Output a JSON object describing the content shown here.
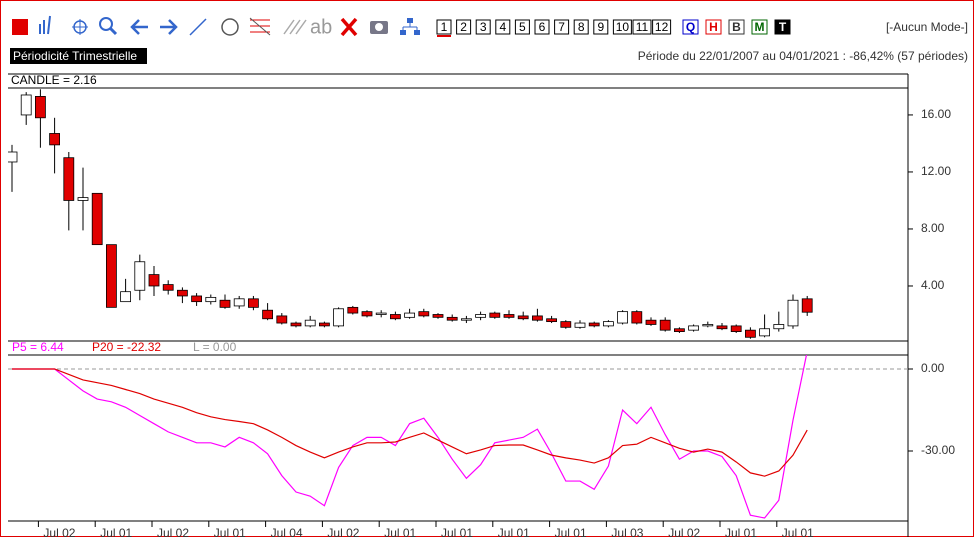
{
  "toolbar": {
    "ab": "ab",
    "numbers": [
      "1",
      "2",
      "3",
      "4",
      "5",
      "6",
      "7",
      "8",
      "9",
      "10",
      "11",
      "12"
    ],
    "letters": [
      "Q",
      "H",
      "B",
      "M",
      "T"
    ],
    "mode": "[-Aucun Mode-]"
  },
  "header": {
    "periodicity": "Périodicité Trimestrielle",
    "period": "Période du 22/01/2007 au 04/01/2021 : -86,42% (57 périodes)"
  },
  "chart_data": [
    {
      "type": "candlestick",
      "legend_label": "CANDLE = 2.16",
      "categories": [
        null,
        null,
        "Jul 02",
        null,
        null,
        null,
        "Jul 01",
        null,
        null,
        null,
        "Jul 02",
        null,
        null,
        null,
        "Jul 01",
        null,
        null,
        null,
        "Jul 04",
        null,
        null,
        null,
        "Jul 02",
        null,
        null,
        null,
        "Jul 01",
        null,
        null,
        null,
        "Jul 01",
        null,
        null,
        null,
        "Jul 01",
        null,
        null,
        null,
        "Jul 01",
        null,
        null,
        null,
        "Jul 03",
        null,
        null,
        null,
        "Jul 02",
        null,
        null,
        null,
        "Jul 01",
        null,
        null,
        null,
        "Jul 01",
        null,
        null
      ],
      "open": [
        12.7,
        16.0,
        17.3,
        14.7,
        13.0,
        10.0,
        10.5,
        6.9,
        2.9,
        3.7,
        4.8,
        4.1,
        3.7,
        3.3,
        2.9,
        3.0,
        2.6,
        3.1,
        2.3,
        1.9,
        1.4,
        1.2,
        1.4,
        1.2,
        2.5,
        2.2,
        2.0,
        2.0,
        1.8,
        2.2,
        2.0,
        1.8,
        1.6,
        1.8,
        2.1,
        2.0,
        1.9,
        1.9,
        1.7,
        1.5,
        1.1,
        1.4,
        1.2,
        1.4,
        2.2,
        1.6,
        1.6,
        1.0,
        0.9,
        1.2,
        1.2,
        1.2,
        0.9,
        0.5,
        1.0,
        1.2,
        3.1
      ],
      "high": [
        13.9,
        17.6,
        17.8,
        15.8,
        13.4,
        12.3,
        10.5,
        6.9,
        4.5,
        6.2,
        5.4,
        4.4,
        3.9,
        3.5,
        3.4,
        3.4,
        3.3,
        3.3,
        2.8,
        2.1,
        1.5,
        1.9,
        1.5,
        2.5,
        2.6,
        2.3,
        2.3,
        2.2,
        2.4,
        2.4,
        2.1,
        2.0,
        1.9,
        2.2,
        2.2,
        2.3,
        2.2,
        2.4,
        1.9,
        1.6,
        1.6,
        1.5,
        1.6,
        2.3,
        2.3,
        1.8,
        1.8,
        1.1,
        1.3,
        1.5,
        1.4,
        1.3,
        1.1,
        2.0,
        2.2,
        3.4,
        3.3
      ],
      "low": [
        10.6,
        15.3,
        13.7,
        11.9,
        7.9,
        7.9,
        6.9,
        2.5,
        2.9,
        3.0,
        3.3,
        3.4,
        2.8,
        2.6,
        2.7,
        2.4,
        2.4,
        2.3,
        1.6,
        1.3,
        1.1,
        1.1,
        1.1,
        1.1,
        2.0,
        1.8,
        1.8,
        1.6,
        1.7,
        1.8,
        1.7,
        1.5,
        1.4,
        1.6,
        1.7,
        1.7,
        1.6,
        1.5,
        1.4,
        1.0,
        1.0,
        1.1,
        1.1,
        1.3,
        1.3,
        1.2,
        0.8,
        0.7,
        0.8,
        1.1,
        0.9,
        0.7,
        0.3,
        0.4,
        0.8,
        1.0,
        1.9
      ],
      "close": [
        13.4,
        17.4,
        15.8,
        13.9,
        10.0,
        10.2,
        6.9,
        2.5,
        3.6,
        5.7,
        4.0,
        3.7,
        3.3,
        2.9,
        3.2,
        2.5,
        3.1,
        2.5,
        1.7,
        1.4,
        1.2,
        1.6,
        1.2,
        2.4,
        2.1,
        1.9,
        2.1,
        1.7,
        2.1,
        1.9,
        1.8,
        1.6,
        1.7,
        2.0,
        1.8,
        1.8,
        1.7,
        1.6,
        1.5,
        1.1,
        1.4,
        1.2,
        1.5,
        2.2,
        1.4,
        1.3,
        0.9,
        0.8,
        1.2,
        1.3,
        1.0,
        0.8,
        0.4,
        1.0,
        1.3,
        3.0,
        2.16
      ],
      "up_color": "#ffffff",
      "down_color": "#e00000",
      "ylim": [
        0.14,
        17.89
      ],
      "yticks": [
        {
          "value": 4,
          "label": "4.00"
        },
        {
          "value": 8,
          "label": "8.00"
        },
        {
          "value": 12,
          "label": "12.00"
        },
        {
          "value": 16,
          "label": "16.00"
        }
      ]
    },
    {
      "type": "line",
      "series": [
        {
          "name": "P5 = 6.44",
          "color": "#ff00ff",
          "values": [
            0,
            0,
            0,
            0,
            -4,
            -8,
            -11,
            -12,
            -14,
            -17,
            -20,
            -23,
            -25,
            -27,
            -27,
            -28.5,
            -25,
            -27,
            -31,
            -39,
            -45,
            -46.5,
            -50,
            -36,
            -28,
            -25,
            -25,
            -28,
            -20,
            -18,
            -25,
            -33,
            -40,
            -35,
            -27,
            -26,
            -25,
            -22,
            -31,
            -41,
            -41,
            -44,
            -35.5,
            -15,
            -20,
            -14,
            -24,
            -33,
            -30,
            -30,
            -32,
            -39,
            -53.5,
            -54.5,
            -48,
            -18.7,
            6.44
          ]
        },
        {
          "name": "P20 = -22.32",
          "color": "#e00000",
          "values": [
            0,
            0,
            0,
            0,
            -2,
            -4,
            -5,
            -6,
            -7.5,
            -9,
            -11,
            -12.5,
            -14,
            -16,
            -17.5,
            -18.5,
            -19.2,
            -20,
            -22.3,
            -25,
            -28,
            -30.4,
            -32.5,
            -30.4,
            -28.5,
            -27,
            -27,
            -26.7,
            -25,
            -23.4,
            -26,
            -28.5,
            -31,
            -29.6,
            -28,
            -27.8,
            -27.8,
            -29.6,
            -31.5,
            -32.5,
            -33.3,
            -34.4,
            -32.5,
            -28,
            -27.5,
            -25,
            -27,
            -29,
            -30.4,
            -29.3,
            -30.4,
            -34,
            -38,
            -39.2,
            -37.3,
            -31.5,
            -22.32
          ]
        }
      ],
      "reference_line": {
        "name": "L = 0.00",
        "value": 0,
        "color": "#999999"
      },
      "ylim": [
        -55.6,
        5.12
      ],
      "yticks": [
        {
          "value": -30,
          "label": "-30.00"
        },
        {
          "value": 0,
          "label": "0.00"
        }
      ]
    }
  ]
}
